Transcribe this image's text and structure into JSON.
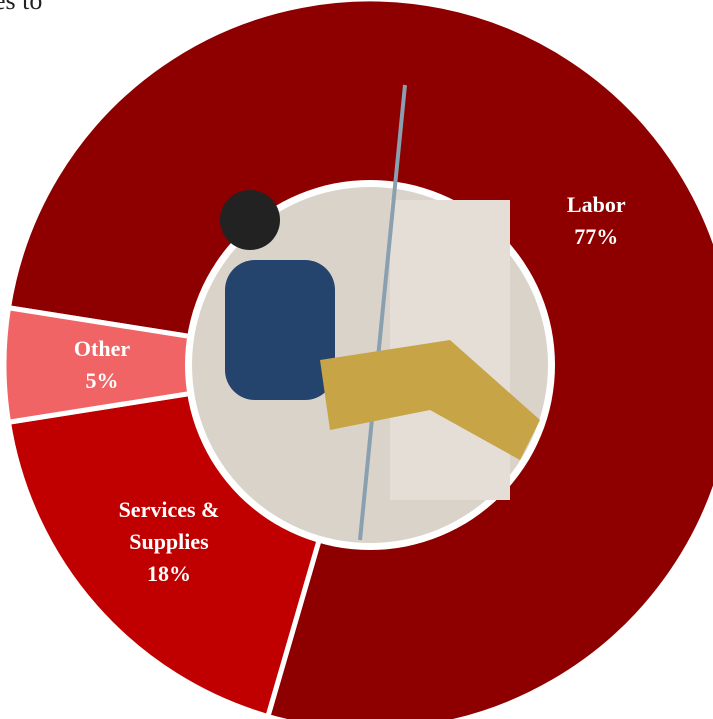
{
  "chart_data": {
    "type": "donut",
    "title": "es to",
    "categories": [
      "Labor",
      "Services & Supplies",
      "Other"
    ],
    "values": [
      77,
      18,
      5
    ],
    "value_labels": [
      "77%",
      "18%",
      "5%"
    ],
    "colors": [
      "#8e0000",
      "#c00000",
      "#f06466"
    ]
  }
}
